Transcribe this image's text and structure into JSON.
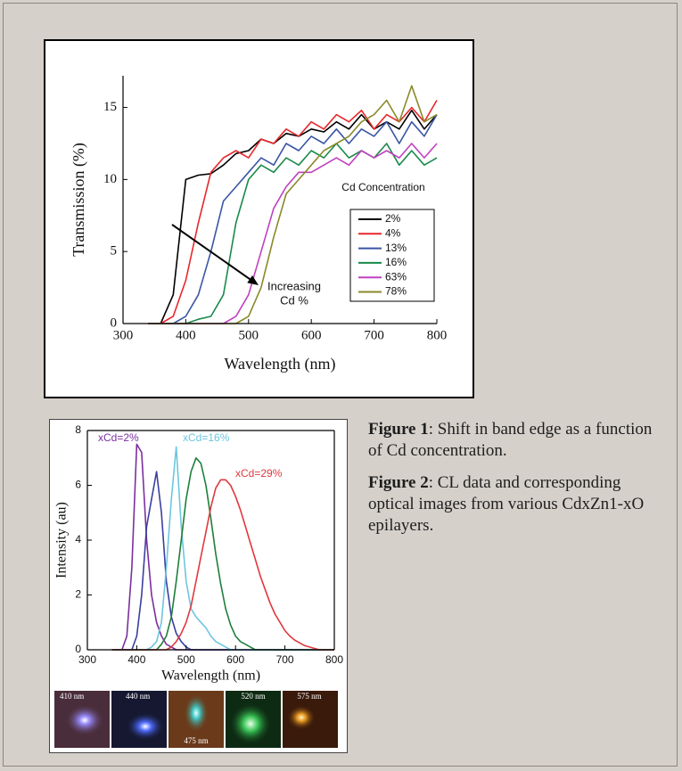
{
  "chart_data": [
    {
      "type": "line",
      "x_label": "Wavelength (nm)",
      "y_label": "Transmission (%)",
      "xlim": [
        300,
        800
      ],
      "ylim": [
        0,
        17.2
      ],
      "xticks": [
        300,
        400,
        500,
        600,
        700,
        800
      ],
      "yticks": [
        0,
        5,
        10,
        15
      ],
      "legend": "lower right",
      "legend_title": "Cd Concentration",
      "annotation": [
        "Increasing",
        "Cd %"
      ],
      "x": [
        340,
        360,
        380,
        400,
        420,
        440,
        460,
        480,
        500,
        520,
        540,
        560,
        580,
        600,
        620,
        640,
        660,
        680,
        700,
        720,
        740,
        760,
        780,
        800
      ],
      "series": [
        {
          "name": "2%",
          "color": "#000000",
          "values": [
            0,
            0,
            2,
            10,
            10.3,
            10.4,
            11,
            11.8,
            12,
            12.8,
            12.5,
            13.2,
            13,
            13.5,
            13.3,
            14,
            13.5,
            14.5,
            13.5,
            14,
            13.5,
            14.8,
            13.5,
            14.5
          ]
        },
        {
          "name": "4%",
          "color": "#e8262b",
          "values": [
            0,
            0,
            0.5,
            3,
            7,
            10.5,
            11.5,
            12,
            11.5,
            12.8,
            12.5,
            13.5,
            13,
            14,
            13.5,
            14.5,
            14,
            14.8,
            13.5,
            14.5,
            14,
            15,
            14,
            15.5
          ]
        },
        {
          "name": "13%",
          "color": "#3a55a5",
          "values": [
            0,
            0,
            0,
            0.5,
            2,
            5,
            8.5,
            9.5,
            10.5,
            11.5,
            11,
            12.5,
            12,
            13,
            12.5,
            13.5,
            12.5,
            13.5,
            13,
            14,
            12.5,
            14,
            13,
            14.5
          ]
        },
        {
          "name": "16%",
          "color": "#1a8a4a",
          "values": [
            0,
            0,
            0,
            0,
            0.3,
            0.5,
            2,
            7,
            10,
            11,
            10.5,
            11.5,
            11,
            12,
            11.5,
            12.5,
            11.5,
            12,
            11.5,
            12.5,
            11,
            12,
            11,
            11.5
          ]
        },
        {
          "name": "63%",
          "color": "#c040c0",
          "values": [
            0,
            0,
            0,
            0,
            0,
            0,
            0,
            0.5,
            2,
            5,
            8,
            9.5,
            10.5,
            10.5,
            11,
            11.5,
            11,
            12,
            11.5,
            12,
            11.5,
            12.5,
            11.5,
            12.5
          ]
        },
        {
          "name": "78%",
          "color": "#8a8a2a",
          "values": [
            0,
            0,
            0,
            0,
            0,
            0,
            0,
            0,
            0.5,
            2.5,
            6,
            9,
            10,
            11,
            12,
            12.5,
            13,
            14,
            14.5,
            15.5,
            14,
            16.5,
            14,
            14.5
          ]
        }
      ]
    },
    {
      "type": "line",
      "x_label": "Wavelength (nm)",
      "y_label": "Intensity (au)",
      "xlim": [
        300,
        800
      ],
      "ylim": [
        0,
        8
      ],
      "xticks": [
        300,
        400,
        500,
        600,
        700,
        800
      ],
      "yticks": [
        0,
        2,
        4,
        6,
        8
      ],
      "x": [
        350,
        360,
        370,
        380,
        390,
        400,
        410,
        420,
        430,
        440,
        450,
        460,
        470,
        480,
        490,
        500,
        510,
        520,
        530,
        540,
        550,
        560,
        570,
        580,
        590,
        600,
        610,
        620,
        630,
        640,
        650,
        660,
        670,
        680,
        690,
        700,
        710,
        720,
        730,
        740,
        750,
        760,
        770,
        780,
        790,
        800
      ],
      "series": [
        {
          "name": "xCd=2%",
          "color": "#7b2f9e",
          "values": [
            0,
            0,
            0,
            0.5,
            3,
            7.5,
            7.2,
            4,
            2,
            1,
            0.5,
            0.2,
            0.1,
            0,
            0,
            0,
            0,
            0,
            0,
            0,
            0,
            0,
            0,
            0,
            0,
            0,
            0,
            0,
            0,
            0,
            0,
            0,
            0,
            0,
            0,
            0,
            0,
            0,
            0,
            0,
            0,
            0,
            0,
            0,
            0,
            0
          ]
        },
        {
          "color": "#3a3fa0",
          "values": [
            0,
            0,
            0,
            0,
            0,
            0.5,
            2,
            4.5,
            5.5,
            6.5,
            5,
            2.5,
            1.2,
            0.6,
            0.3,
            0.1,
            0,
            0,
            0,
            0,
            0,
            0,
            0,
            0,
            0,
            0,
            0,
            0,
            0,
            0,
            0,
            0,
            0,
            0,
            0,
            0,
            0,
            0,
            0,
            0,
            0,
            0,
            0,
            0,
            0,
            0
          ]
        },
        {
          "name": "xCd=16%",
          "color": "#6cc6e0",
          "values": [
            0,
            0,
            0,
            0,
            0,
            0,
            0,
            0,
            0.1,
            0.3,
            1,
            3,
            5.5,
            7.4,
            4.5,
            2.5,
            1.5,
            1.2,
            1,
            0.8,
            0.5,
            0.3,
            0.2,
            0.1,
            0,
            0,
            0,
            0,
            0,
            0,
            0,
            0,
            0,
            0,
            0,
            0,
            0,
            0,
            0,
            0,
            0,
            0,
            0,
            0,
            0,
            0
          ]
        },
        {
          "color": "#1e7f3a",
          "values": [
            0,
            0,
            0,
            0,
            0,
            0,
            0,
            0,
            0,
            0,
            0.2,
            0.5,
            1.2,
            2.5,
            4,
            5.5,
            6.5,
            7,
            6.8,
            6,
            4.8,
            3.5,
            2.4,
            1.5,
            0.9,
            0.5,
            0.3,
            0.2,
            0.1,
            0,
            0,
            0,
            0,
            0,
            0,
            0,
            0,
            0,
            0,
            0,
            0,
            0,
            0,
            0,
            0,
            0
          ]
        },
        {
          "name": "xCd=29%",
          "color": "#e0383e",
          "values": [
            0,
            0,
            0,
            0,
            0,
            0,
            0,
            0,
            0,
            0,
            0,
            0,
            0.1,
            0.3,
            0.6,
            1,
            1.6,
            2.5,
            3.4,
            4.3,
            5.2,
            5.9,
            6.2,
            6.2,
            6,
            5.6,
            5.1,
            4.5,
            3.9,
            3.3,
            2.7,
            2.2,
            1.7,
            1.3,
            1,
            0.7,
            0.5,
            0.35,
            0.25,
            0.15,
            0.1,
            0.05,
            0,
            0,
            0,
            0
          ]
        }
      ]
    }
  ],
  "images": [
    {
      "label": "410 nm"
    },
    {
      "label": "440 nm"
    },
    {
      "label": "475 nm"
    },
    {
      "label": "520 nm"
    },
    {
      "label": "575 nm"
    }
  ],
  "captions": [
    {
      "label": "Figure 1",
      "text": ":  Shift in band edge as a function of Cd concentration."
    },
    {
      "label": "Figure 2",
      "text": ":  CL data and corresponding optical images from various CdxZn1-xO epilayers."
    }
  ]
}
